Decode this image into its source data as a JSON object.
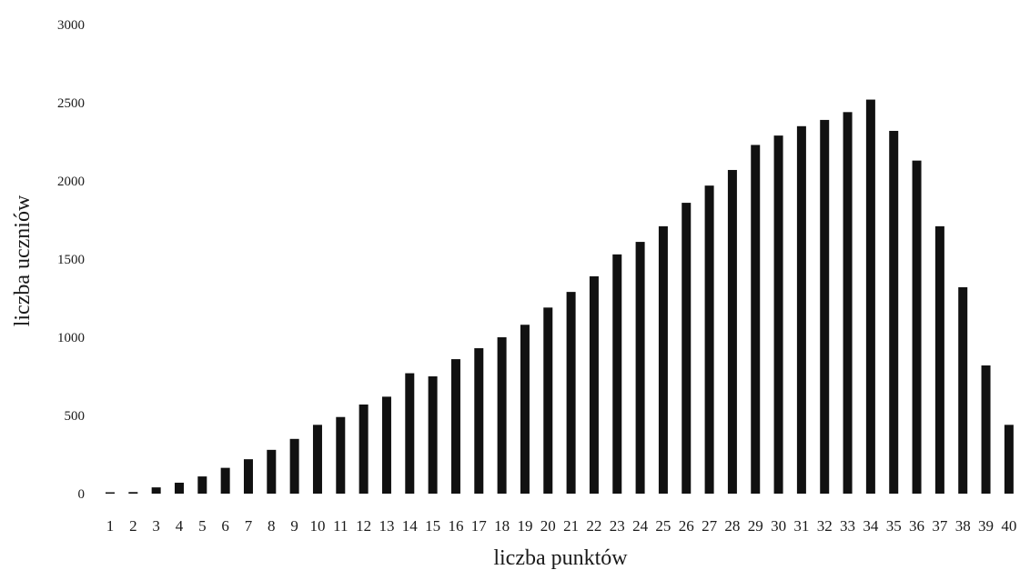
{
  "chart_data": {
    "type": "bar",
    "xlabel": "liczba punktów",
    "ylabel": "liczba uczniów",
    "ylim": [
      0,
      3000
    ],
    "yticks": [
      0,
      500,
      1000,
      1500,
      2000,
      2500,
      3000
    ],
    "grid": false,
    "categories": [
      "1",
      "2",
      "3",
      "4",
      "5",
      "6",
      "7",
      "8",
      "9",
      "10",
      "11",
      "12",
      "13",
      "14",
      "15",
      "16",
      "17",
      "18",
      "19",
      "20",
      "21",
      "22",
      "23",
      "24",
      "25",
      "26",
      "27",
      "28",
      "29",
      "30",
      "31",
      "32",
      "33",
      "34",
      "35",
      "36",
      "37",
      "38",
      "39",
      "40"
    ],
    "values": [
      5,
      10,
      40,
      70,
      110,
      165,
      220,
      280,
      350,
      440,
      490,
      570,
      620,
      770,
      750,
      860,
      930,
      1000,
      1080,
      1190,
      1290,
      1390,
      1530,
      1610,
      1710,
      1860,
      1970,
      2070,
      2230,
      2290,
      2350,
      2390,
      2440,
      2520,
      2320,
      2130,
      1710,
      1320,
      820,
      440
    ],
    "bar_color": "#111111"
  }
}
